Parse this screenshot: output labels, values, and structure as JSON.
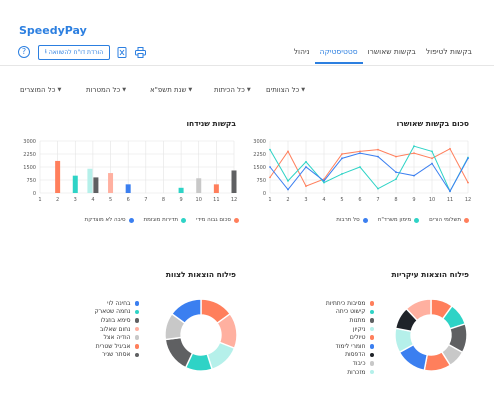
{
  "app": {
    "logo": "SpeedyPay"
  },
  "tabs": [
    {
      "label": "בקשות לטיפול",
      "active": false
    },
    {
      "label": "בקשות שאושרו",
      "active": false
    },
    {
      "label": "סטטיסטיקה",
      "active": true
    },
    {
      "label": "ניהול",
      "active": false
    }
  ],
  "toolbar": {
    "export_label": "הורדת דו\"ח להשוואה",
    "help_icon": "?"
  },
  "filters": {
    "teams": "כל הצוותים",
    "institutions": "כל הכיתות",
    "year": "שנת תשפ\"א",
    "purposes": "כל המטרות",
    "products": "כל המוצרים"
  },
  "colors": {
    "accent": "#2c7fe0",
    "salmon": "#ff7f5c",
    "teal": "#2ed3c6",
    "blue": "#3b7ff0",
    "darkgray": "#5f6062",
    "lightgray": "#c8c8c8",
    "peach": "#ffb0a0",
    "aqua": "#b5f0ea"
  },
  "approved_panel": {
    "title": "סכום בקשות שאושרו",
    "legend": [
      {
        "label": "תשלומי הורים",
        "color": "#ff7f5c"
      },
      {
        "label": "מימון משרד\"ח",
        "color": "#2ed3c6"
      },
      {
        "label": "סל תרבות",
        "color": "#3b7ff0"
      }
    ]
  },
  "rejected_panel": {
    "title": "בקשות שנידחו",
    "legend": [
      {
        "label": "סכום גבוה מידי",
        "color": "#ff7f5c"
      },
      {
        "label": "תדירות מוגזמת",
        "color": "#2ed3c6"
      },
      {
        "label": "סיבה לא מוצדקת",
        "color": "#3b7ff0"
      }
    ]
  },
  "main_expenses": {
    "title": "פילוח הוצאות עיקריות",
    "items": [
      {
        "label": "מסיבות כיתתיות",
        "color": "#ff7f5c"
      },
      {
        "label": "קישוט כיתה",
        "color": "#2ed3c6"
      },
      {
        "label": "מתנות",
        "color": "#5f6062"
      },
      {
        "label": "ניקיון",
        "color": "#b5f0ea"
      },
      {
        "label": "טיולים",
        "color": "#ff7f5c"
      },
      {
        "label": "חומרי לימוד",
        "color": "#3b7ff0"
      },
      {
        "label": "הדפסות",
        "color": "#1f2329"
      },
      {
        "label": "כיבוד",
        "color": "#c8c8c8"
      },
      {
        "label": "מזכרות",
        "color": "#b5f0ea"
      }
    ]
  },
  "team_expenses": {
    "title": "פילוח הוצאות לצוות",
    "items": [
      {
        "label": "בחינה לוי",
        "color": "#3b7ff0"
      },
      {
        "label": "נחמה שטארק",
        "color": "#2ed3c6"
      },
      {
        "label": "סימא בוזגלו",
        "color": "#5f6062"
      },
      {
        "label": "נחום שאלוב",
        "color": "#ffb0a0"
      },
      {
        "label": "הודיה אצל",
        "color": "#c8c8c8"
      },
      {
        "label": "אביגיל שטרית",
        "color": "#ff7f5c"
      },
      {
        "label": "אסתר שניר",
        "color": "#5f6062"
      }
    ]
  },
  "chart_data": [
    {
      "type": "line",
      "title": "סכום בקשות שאושרו",
      "x": [
        1,
        2,
        3,
        4,
        5,
        6,
        7,
        8,
        9,
        10,
        11,
        12
      ],
      "ylim": [
        0,
        3000
      ],
      "yticks": [
        0,
        750,
        1500,
        2250,
        3000
      ],
      "grid": true,
      "legend_position": "bottom",
      "series": [
        {
          "name": "תשלומי הורים",
          "color": "#ff7f5c",
          "values": [
            900,
            2400,
            400,
            800,
            2250,
            2400,
            2500,
            2100,
            2300,
            2000,
            2550,
            600
          ]
        },
        {
          "name": "מימון משרד\"ח",
          "color": "#2ed3c6",
          "values": [
            2500,
            700,
            1800,
            600,
            1100,
            1500,
            250,
            800,
            2700,
            2400,
            100,
            2050
          ]
        },
        {
          "name": "סל תרבות",
          "color": "#3b7ff0",
          "values": [
            1500,
            200,
            1500,
            700,
            2000,
            2300,
            2100,
            1200,
            1000,
            1700,
            100,
            2000
          ]
        }
      ]
    },
    {
      "type": "bar",
      "title": "בקשות שנידחו",
      "x": [
        1,
        2,
        3,
        4,
        5,
        6,
        7,
        8,
        9,
        10,
        11,
        12
      ],
      "ylim": [
        0,
        3000
      ],
      "yticks": [
        0,
        750,
        1500,
        2250,
        3000
      ],
      "grid": true,
      "legend_position": "bottom",
      "bars": [
        {
          "x": 2,
          "value": 1850,
          "color": "#ff7f5c"
        },
        {
          "x": 3,
          "value": 1000,
          "color": "#2ed3c6"
        },
        {
          "x": 4,
          "value": 1400,
          "color": "#b5f0ea"
        },
        {
          "x": 4,
          "value": 900,
          "color": "#5f6062"
        },
        {
          "x": 5,
          "value": 1150,
          "color": "#ffb0a0"
        },
        {
          "x": 6,
          "value": 500,
          "color": "#3b7ff0"
        },
        {
          "x": 9,
          "value": 300,
          "color": "#2ed3c6"
        },
        {
          "x": 10,
          "value": 850,
          "color": "#c8c8c8"
        },
        {
          "x": 11,
          "value": 500,
          "color": "#ff7f5c"
        },
        {
          "x": 12,
          "value": 1300,
          "color": "#5f6062"
        }
      ]
    },
    {
      "type": "pie",
      "title": "פילוח הוצאות עיקריות",
      "donut": true,
      "slices": [
        {
          "label": "מסיבות כיתתיות",
          "value": 10,
          "color": "#ff7f5c"
        },
        {
          "label": "קישוט כיתה",
          "value": 10,
          "color": "#2ed3c6"
        },
        {
          "label": "מתנות",
          "value": 13,
          "color": "#5f6062"
        },
        {
          "label": "ניקיון",
          "value": 8,
          "color": "#c8c8c8"
        },
        {
          "label": "טיולים",
          "value": 12,
          "color": "#ff7f5c"
        },
        {
          "label": "חומרי לימוד",
          "value": 14,
          "color": "#3b7ff0"
        },
        {
          "label": "הדפסות",
          "value": 11,
          "color": "#b5f0ea"
        },
        {
          "label": "כיבוד",
          "value": 10,
          "color": "#1f2329"
        },
        {
          "label": "מזכרות",
          "value": 12,
          "color": "#ffb0a0"
        }
      ]
    },
    {
      "type": "pie",
      "title": "פילוח הוצאות לצוות",
      "donut": true,
      "slices": [
        {
          "label": "בחינה לוי",
          "value": 15,
          "color": "#ff7f5c"
        },
        {
          "label": "נחמה שטארק",
          "value": 16,
          "color": "#ffb0a0"
        },
        {
          "label": "סימא בוזגלו",
          "value": 14,
          "color": "#b5f0ea"
        },
        {
          "label": "נחום שאלוב",
          "value": 12,
          "color": "#2ed3c6"
        },
        {
          "label": "הודיה אצל",
          "value": 16,
          "color": "#5f6062"
        },
        {
          "label": "אביגיל שטרית",
          "value": 12,
          "color": "#c8c8c8"
        },
        {
          "label": "אסתר שניר",
          "value": 15,
          "color": "#3b7ff0"
        }
      ]
    }
  ]
}
